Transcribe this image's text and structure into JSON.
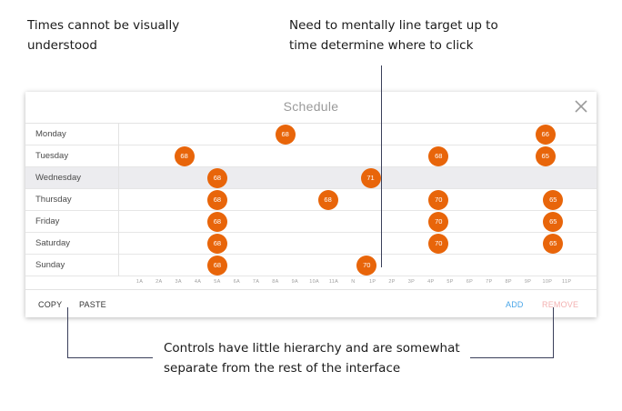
{
  "annotations": {
    "top_left": [
      "Times cannot be visually",
      "understood"
    ],
    "top_right": [
      "Need to mentally line target up to",
      "time determine where to click"
    ],
    "bottom": [
      "Controls have little hierarchy and are somewhat",
      "separate from the rest of the interface"
    ]
  },
  "modal": {
    "title": "Schedule",
    "close_icon": "close-icon"
  },
  "schedule": {
    "days": [
      {
        "label": "Monday",
        "highlight": false,
        "temps": [
          {
            "hour": 8.5,
            "value": "68"
          },
          {
            "hour": 21.9,
            "value": "66"
          }
        ]
      },
      {
        "label": "Tuesday",
        "highlight": false,
        "temps": [
          {
            "hour": 3.3,
            "value": "68"
          },
          {
            "hour": 16.4,
            "value": "68"
          },
          {
            "hour": 21.9,
            "value": "65"
          }
        ]
      },
      {
        "label": "Wednesday",
        "highlight": true,
        "temps": [
          {
            "hour": 5.0,
            "value": "68"
          },
          {
            "hour": 12.9,
            "value": "71"
          }
        ]
      },
      {
        "label": "Thursday",
        "highlight": false,
        "temps": [
          {
            "hour": 5.0,
            "value": "68"
          },
          {
            "hour": 10.7,
            "value": "68"
          },
          {
            "hour": 16.4,
            "value": "70"
          },
          {
            "hour": 22.3,
            "value": "65"
          }
        ]
      },
      {
        "label": "Friday",
        "highlight": false,
        "temps": [
          {
            "hour": 5.0,
            "value": "68"
          },
          {
            "hour": 16.4,
            "value": "70"
          },
          {
            "hour": 22.3,
            "value": "65"
          }
        ]
      },
      {
        "label": "Saturday",
        "highlight": false,
        "temps": [
          {
            "hour": 5.0,
            "value": "68"
          },
          {
            "hour": 16.4,
            "value": "70"
          },
          {
            "hour": 22.3,
            "value": "65"
          }
        ]
      },
      {
        "label": "Sunday",
        "highlight": false,
        "temps": [
          {
            "hour": 5.0,
            "value": "68"
          },
          {
            "hour": 12.7,
            "value": "70"
          }
        ]
      }
    ],
    "ticks": [
      "1A",
      "2A",
      "3A",
      "4A",
      "5A",
      "6A",
      "7A",
      "8A",
      "9A",
      "10A",
      "11A",
      "N",
      "1P",
      "2P",
      "3P",
      "4P",
      "5P",
      "6P",
      "7P",
      "8P",
      "9P",
      "10P",
      "11P"
    ]
  },
  "footer": {
    "copy_label": "COPY",
    "paste_label": "PASTE",
    "add_label": "ADD",
    "remove_label": "REMOVE"
  },
  "colors": {
    "accent": "#e8650a",
    "add": "#4aa6e8",
    "remove": "#f3b0b0"
  }
}
